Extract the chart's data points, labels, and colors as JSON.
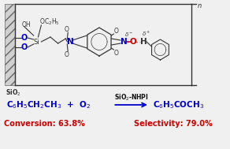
{
  "bg_color": "#f0f0f0",
  "bracket_color": "#333333",
  "arrow_color": "#0000cc",
  "reaction_text_color": "#0000cc",
  "result_text_color": "#cc0000",
  "catalyst_color": "#111111",
  "n_color": "#0000cc",
  "no_color": "#cc0000",
  "o_color": "#cc0000",
  "reactant": "C$_6$H$_5$CH$_2$CH$_3$  +  O$_2$",
  "product": "C$_6$H$_5$COCH$_3$",
  "catalyst": "SiO$_2$-NHPI",
  "conversion": "Conversion: 63.8%",
  "selectivity": "Selectivity: 79.0%"
}
